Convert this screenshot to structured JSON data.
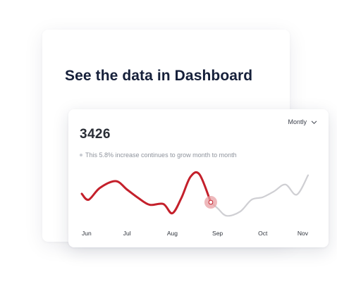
{
  "headline": "See the data in Dashboard",
  "card": {
    "metric": "3426",
    "note": "This 5.8% increase continues to grow month to month",
    "period_select": {
      "selected": "Montly",
      "icon": "chevron-down-icon"
    }
  },
  "colors": {
    "highlight_line": "#c4202b",
    "muted_line": "#cfcfd3",
    "marker": "#e8a0a4",
    "headline": "#16203a"
  },
  "chart_data": {
    "type": "line",
    "categories": [
      "Jun",
      "Jul",
      "Aug",
      "Sep",
      "Oct",
      "Nov"
    ],
    "highlighted_until": "Sep",
    "marker_at": "Sep",
    "grid": false,
    "legend": "none",
    "axis_labels_shown": [
      "Jun",
      "Jul",
      "Aug",
      "Sep",
      "Oct",
      "Nov"
    ],
    "y_axis_visible": false,
    "x": [
      0.0,
      0.15,
      0.4,
      0.75,
      1.0,
      1.25,
      1.5,
      1.8,
      2.0,
      2.2,
      2.4,
      2.6,
      2.85,
      3.0,
      3.2,
      3.5,
      3.75,
      4.0,
      4.25,
      4.5,
      4.75,
      5.0
    ],
    "values": [
      35,
      28,
      42,
      50,
      40,
      30,
      22,
      23,
      12,
      30,
      55,
      58,
      25,
      18,
      9,
      14,
      28,
      31,
      38,
      46,
      34,
      57
    ],
    "ylim": [
      0,
      70
    ]
  }
}
